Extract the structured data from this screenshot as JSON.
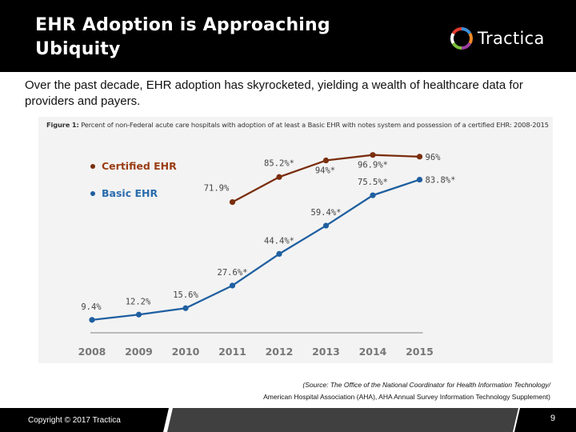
{
  "header": {
    "title_line1": "EHR Adoption is Approaching",
    "title_line2": "Ubiquity",
    "logo_text": "Tractica",
    "logo_icon": "tractica-ring-logo-icon"
  },
  "subtitle": "Over the past decade, EHR adoption has skyrocketed, yielding a wealth of healthcare data for providers and payers.",
  "figure": {
    "caption_bold": "Figure 1:",
    "caption_text": " Percent of non-Federal acute care hospitals with adoption of at least a Basic EHR with notes system and possession of a certified EHR: 2008-2015"
  },
  "chart_data": {
    "type": "line",
    "title": "Figure 1: Percent of non-Federal acute care hospitals with adoption of at least a Basic EHR with notes system and possession of a certified EHR: 2008-2015",
    "xlabel": "",
    "ylabel": "",
    "x": [
      "2008",
      "2009",
      "2010",
      "2011",
      "2012",
      "2013",
      "2014",
      "2015"
    ],
    "ylim": [
      0,
      100
    ],
    "grid": false,
    "legend_position": "top-left",
    "series": [
      {
        "name": "Certified EHR",
        "color": "#7a2e0e",
        "values": [
          null,
          null,
          null,
          71.9,
          85.2,
          94,
          96.9,
          96
        ],
        "labels": [
          null,
          null,
          null,
          "71.9%",
          "85.2%*",
          "94%*",
          "96.9%*",
          "96%"
        ]
      },
      {
        "name": "Basic EHR",
        "color": "#1f5fa0",
        "values": [
          9.4,
          12.2,
          15.6,
          27.6,
          44.4,
          59.4,
          75.5,
          83.8
        ],
        "labels": [
          "9.4%",
          "12.2%",
          "15.6%",
          "27.6%*",
          "44.4%*",
          "59.4%*",
          "75.5%*",
          "83.8%*"
        ]
      }
    ]
  },
  "source": {
    "line1": "(Source: The Office of the National Coordinator for Health Information Technology/",
    "line2": "American Hospital Association (AHA), AHA Annual Survey Information Technology Supplement)"
  },
  "footer": {
    "copyright": "Copyright © 2017 Tractica",
    "page_number": "9"
  },
  "colors": {
    "header_bg": "#000000",
    "footer_band": "#404040",
    "chart_bg": "#f3f3f3",
    "certified": "#7a2e0e",
    "basic": "#1f5fa0"
  }
}
